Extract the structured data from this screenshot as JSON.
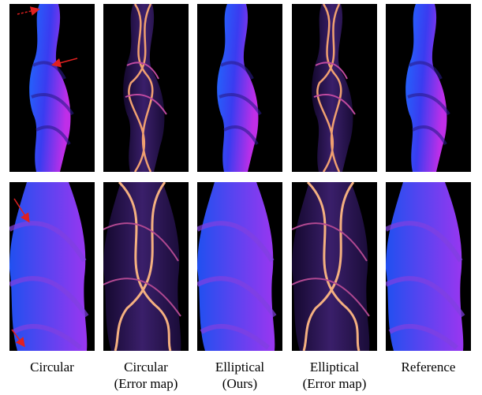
{
  "figure": {
    "captions": [
      {
        "line1": "Circular"
      },
      {
        "line1": "Circular",
        "line2": "(Error map)"
      },
      {
        "line1": "Elliptical",
        "line2": "(Ours)"
      },
      {
        "line1": "Elliptical",
        "line2": "(Error map)"
      },
      {
        "line1": "Reference"
      }
    ]
  }
}
